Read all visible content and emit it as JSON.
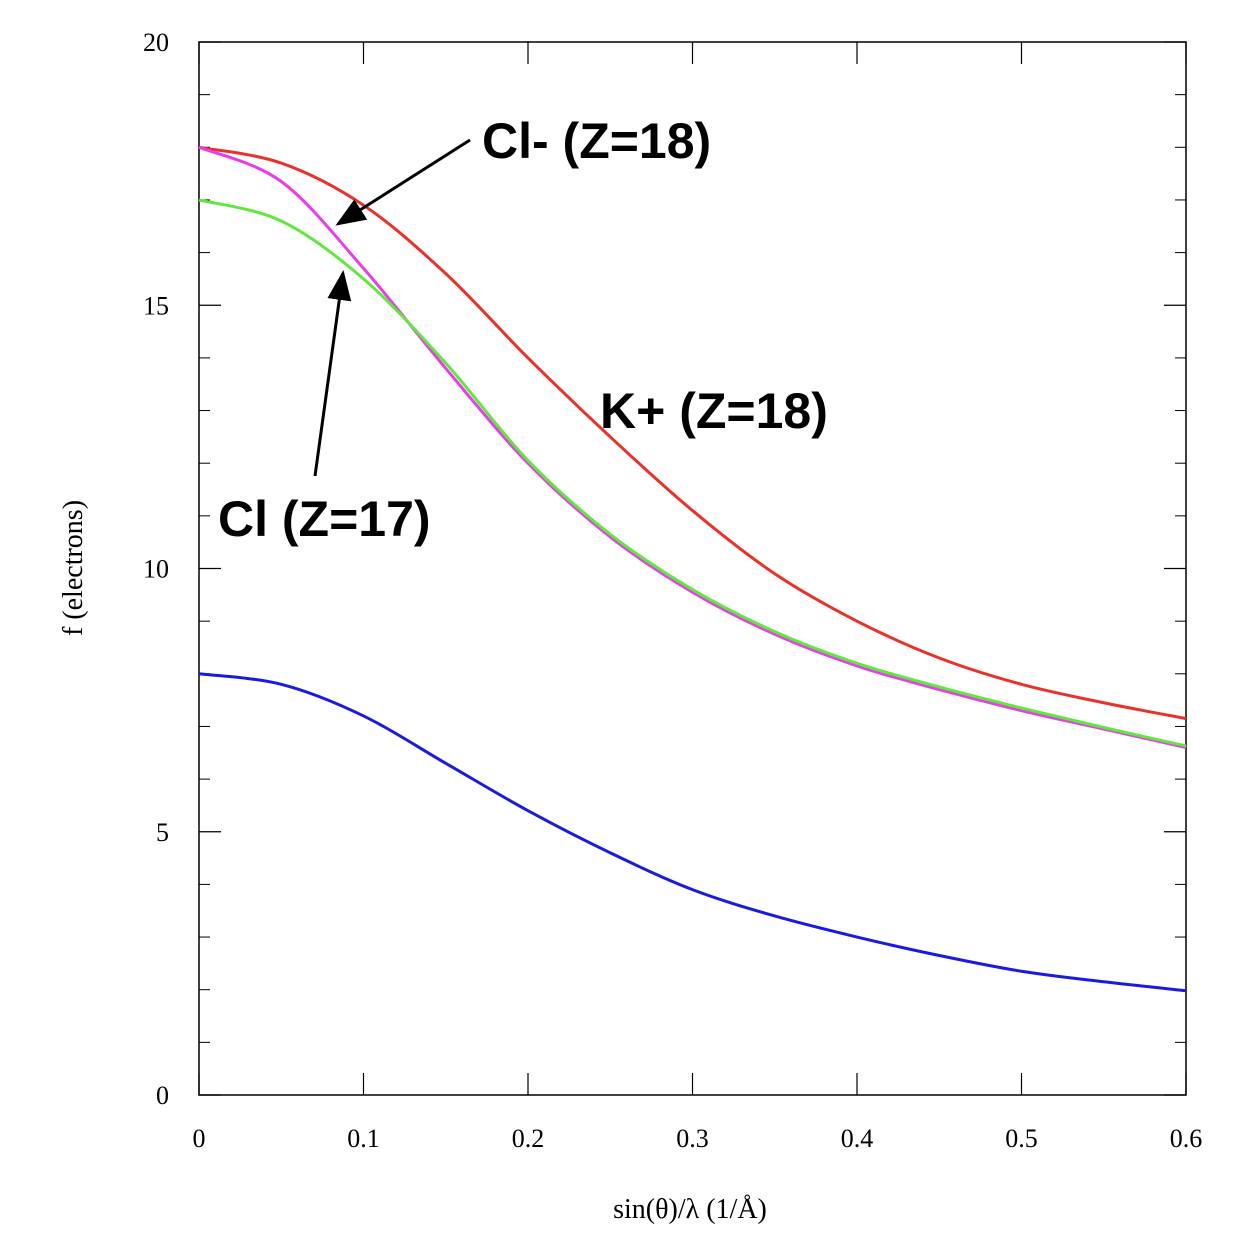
{
  "chart_data": {
    "type": "line",
    "xlabel": "sin(θ)/λ (1/Å)",
    "ylabel": "f (electrons)",
    "xlim": [
      0,
      0.6
    ],
    "ylim": [
      0,
      20
    ],
    "x_ticks": [
      "0",
      "0.1",
      "0.2",
      "0.3",
      "0.4",
      "0.5",
      "0.6"
    ],
    "y_ticks": [
      "0",
      "5",
      "10",
      "15",
      "20"
    ],
    "grid": false,
    "x": [
      0,
      0.05,
      0.1,
      0.15,
      0.2,
      0.25,
      0.3,
      0.35,
      0.4,
      0.45,
      0.5,
      0.55,
      0.6
    ],
    "series": [
      {
        "color": "#e8322a",
        "values": [
          18.0,
          17.7,
          16.9,
          15.6,
          14.0,
          12.5,
          11.1,
          9.9,
          9.0,
          8.3,
          7.8,
          7.45,
          7.15
        ]
      },
      {
        "color": "#e83de8",
        "values": [
          18.0,
          17.35,
          15.7,
          13.8,
          12.0,
          10.6,
          9.55,
          8.75,
          8.15,
          7.7,
          7.3,
          6.95,
          6.6
        ]
      },
      {
        "color": "#5fe83d",
        "values": [
          17.0,
          16.6,
          15.5,
          13.9,
          12.05,
          10.65,
          9.6,
          8.8,
          8.2,
          7.75,
          7.35,
          6.98,
          6.63
        ]
      },
      {
        "color": "#1a1ae0",
        "values": [
          8.0,
          7.8,
          7.2,
          6.3,
          5.4,
          4.6,
          3.9,
          3.4,
          3.0,
          2.65,
          2.35,
          2.15,
          1.98
        ]
      }
    ],
    "annotations": [
      {
        "text": "Cl- (Z=18)",
        "arrow_to": [
          0.085,
          16.3
        ]
      },
      {
        "text": "Cl (Z=17)",
        "arrow_to": [
          0.088,
          15.6
        ]
      },
      {
        "text": "K+ (Z=18)"
      }
    ]
  }
}
